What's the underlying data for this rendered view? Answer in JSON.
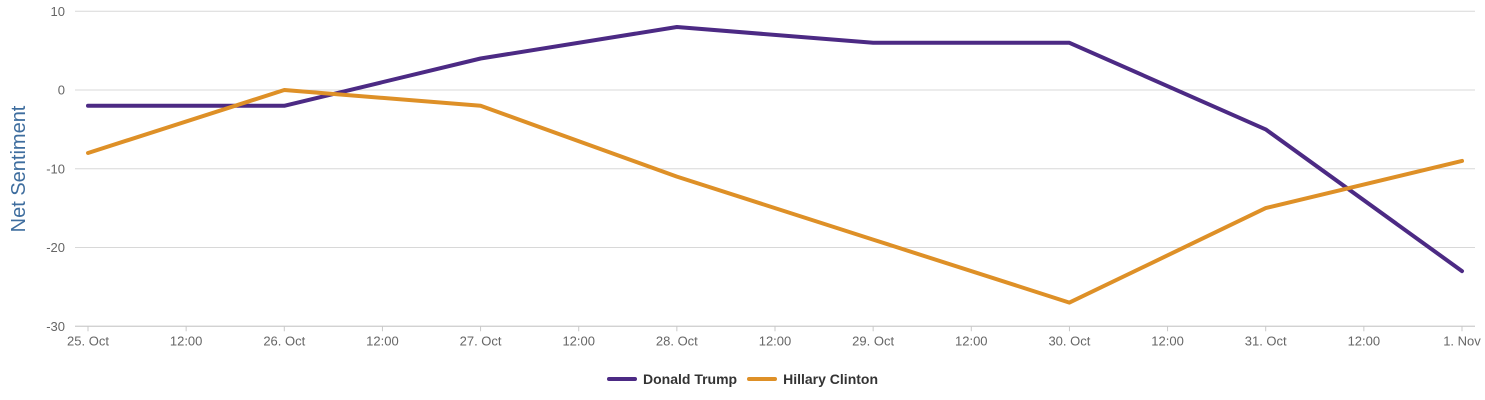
{
  "chart_data": {
    "type": "line",
    "title": "",
    "ylabel": "Net Sentiment",
    "xlabel": "",
    "ylim": [
      -30,
      10
    ],
    "yticks": [
      10,
      0,
      -10,
      -20,
      -30
    ],
    "x_tick_labels": [
      "25. Oct",
      "12:00",
      "26. Oct",
      "12:00",
      "27. Oct",
      "12:00",
      "28. Oct",
      "12:00",
      "29. Oct",
      "12:00",
      "30. Oct",
      "12:00",
      "31. Oct",
      "12:00",
      "1. Nov"
    ],
    "categories": [
      "25. Oct",
      "26. Oct",
      "27. Oct",
      "28. Oct",
      "29. Oct",
      "30. Oct",
      "31. Oct",
      "1. Nov"
    ],
    "series": [
      {
        "name": "Donald Trump",
        "color": "#4c2a84",
        "values": [
          -2,
          -2,
          4,
          8,
          6,
          6,
          -5,
          -23
        ]
      },
      {
        "name": "Hillary Clinton",
        "color": "#de9027",
        "values": [
          -8,
          0,
          -2,
          -11,
          -19,
          -27,
          -15,
          -9
        ]
      }
    ],
    "grid": "horizontal only",
    "legend_position": "bottom center"
  },
  "colors": {
    "axis_title": "#3e6d9e",
    "tick_label": "#666666",
    "legend_text": "#333333",
    "gridline": "#d8d8d8",
    "axis_line": "#c9c9c9",
    "background": "#ffffff"
  }
}
